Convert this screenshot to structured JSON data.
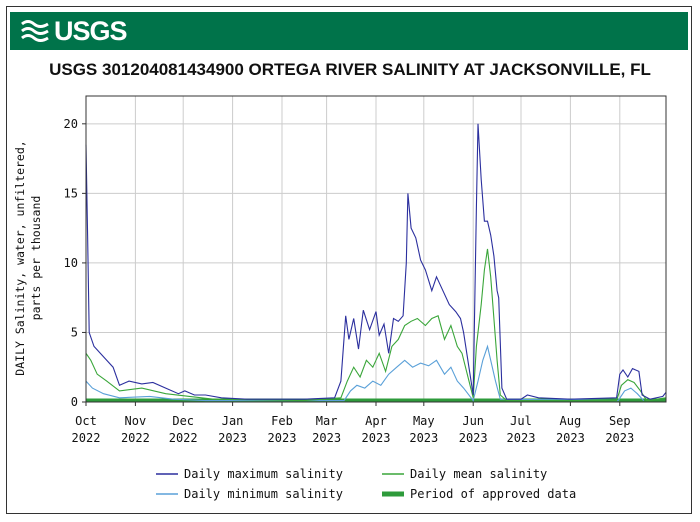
{
  "header": {
    "logo_text": "USGS",
    "brand_color": "#00734a"
  },
  "chart_data": {
    "type": "line",
    "title": "USGS 301204081434900 ORTEGA RIVER SALINITY AT JACKSONVILLE, FL",
    "ylabel_line1": "DAILY Salinity, water, unfiltered,",
    "ylabel_line2": "parts per thousand",
    "ylim": [
      0,
      22
    ],
    "yticks": [
      "0",
      "5",
      "10",
      "15",
      "20"
    ],
    "x_start": "2022-10-01",
    "x_end": "2023-09-30",
    "xticks": [
      {
        "date": "2022-10-01",
        "label1": "Oct",
        "label2": "2022"
      },
      {
        "date": "2022-11-01",
        "label1": "Nov",
        "label2": "2022"
      },
      {
        "date": "2022-12-01",
        "label1": "Dec",
        "label2": "2022"
      },
      {
        "date": "2023-01-01",
        "label1": "Jan",
        "label2": "2023"
      },
      {
        "date": "2023-02-01",
        "label1": "Feb",
        "label2": "2023"
      },
      {
        "date": "2023-03-01",
        "label1": "Mar",
        "label2": "2023"
      },
      {
        "date": "2023-04-01",
        "label1": "Apr",
        "label2": "2023"
      },
      {
        "date": "2023-05-01",
        "label1": "May",
        "label2": "2023"
      },
      {
        "date": "2023-06-01",
        "label1": "Jun",
        "label2": "2023"
      },
      {
        "date": "2023-07-01",
        "label1": "Jul",
        "label2": "2023"
      },
      {
        "date": "2023-08-01",
        "label1": "Aug",
        "label2": "2023"
      },
      {
        "date": "2023-09-01",
        "label1": "Sep",
        "label2": "2023"
      }
    ],
    "grid": true,
    "series": [
      {
        "name": "Daily maximum salinity",
        "color": "#2b2f9e",
        "points": [
          [
            "2022-10-01",
            18.5
          ],
          [
            "2022-10-02",
            12
          ],
          [
            "2022-10-03",
            5
          ],
          [
            "2022-10-06",
            4
          ],
          [
            "2022-10-10",
            3.5
          ],
          [
            "2022-10-14",
            3
          ],
          [
            "2022-10-18",
            2.5
          ],
          [
            "2022-10-22",
            1.2
          ],
          [
            "2022-10-28",
            1.5
          ],
          [
            "2022-11-05",
            1.3
          ],
          [
            "2022-11-12",
            1.4
          ],
          [
            "2022-11-20",
            1.0
          ],
          [
            "2022-11-28",
            0.6
          ],
          [
            "2022-12-02",
            0.8
          ],
          [
            "2022-12-08",
            0.5
          ],
          [
            "2022-12-15",
            0.5
          ],
          [
            "2022-12-25",
            0.3
          ],
          [
            "2023-01-10",
            0.2
          ],
          [
            "2023-02-15",
            0.2
          ],
          [
            "2023-03-06",
            0.3
          ],
          [
            "2023-03-10",
            1.5
          ],
          [
            "2023-03-13",
            6.2
          ],
          [
            "2023-03-15",
            4.5
          ],
          [
            "2023-03-18",
            6.0
          ],
          [
            "2023-03-21",
            3.8
          ],
          [
            "2023-03-24",
            6.6
          ],
          [
            "2023-03-28",
            5.2
          ],
          [
            "2023-04-01",
            6.5
          ],
          [
            "2023-04-03",
            4.8
          ],
          [
            "2023-04-06",
            5.6
          ],
          [
            "2023-04-09",
            3.5
          ],
          [
            "2023-04-12",
            6.0
          ],
          [
            "2023-04-15",
            5.8
          ],
          [
            "2023-04-18",
            6.2
          ],
          [
            "2023-04-20",
            10.0
          ],
          [
            "2023-04-21",
            15.0
          ],
          [
            "2023-04-23",
            12.5
          ],
          [
            "2023-04-26",
            11.8
          ],
          [
            "2023-04-29",
            10.2
          ],
          [
            "2023-05-02",
            9.5
          ],
          [
            "2023-05-06",
            8.0
          ],
          [
            "2023-05-09",
            9.0
          ],
          [
            "2023-05-13",
            8.0
          ],
          [
            "2023-05-17",
            7.0
          ],
          [
            "2023-05-21",
            6.5
          ],
          [
            "2023-05-24",
            6.0
          ],
          [
            "2023-05-26",
            5.0
          ],
          [
            "2023-06-01",
            0.5
          ],
          [
            "2023-06-03",
            14.0
          ],
          [
            "2023-06-04",
            20.0
          ],
          [
            "2023-06-06",
            16.0
          ],
          [
            "2023-06-08",
            13.0
          ],
          [
            "2023-06-10",
            13.0
          ],
          [
            "2023-06-12",
            12.0
          ],
          [
            "2023-06-14",
            10.5
          ],
          [
            "2023-06-16",
            8.0
          ],
          [
            "2023-06-17",
            7.5
          ],
          [
            "2023-06-19",
            1.0
          ],
          [
            "2023-06-22",
            0.2
          ],
          [
            "2023-07-01",
            0.2
          ],
          [
            "2023-07-05",
            0.5
          ],
          [
            "2023-07-12",
            0.3
          ],
          [
            "2023-08-01",
            0.2
          ],
          [
            "2023-08-30",
            0.3
          ],
          [
            "2023-09-01",
            2.0
          ],
          [
            "2023-09-03",
            2.3
          ],
          [
            "2023-09-06",
            1.8
          ],
          [
            "2023-09-09",
            2.4
          ],
          [
            "2023-09-13",
            2.2
          ],
          [
            "2023-09-15",
            0.5
          ],
          [
            "2023-09-20",
            0.2
          ],
          [
            "2023-09-28",
            0.4
          ],
          [
            "2023-09-30",
            0.7
          ]
        ]
      },
      {
        "name": "Daily mean salinity",
        "color": "#3aa63a",
        "points": [
          [
            "2022-10-01",
            3.5
          ],
          [
            "2022-10-04",
            3.0
          ],
          [
            "2022-10-08",
            2.0
          ],
          [
            "2022-10-14",
            1.5
          ],
          [
            "2022-10-22",
            0.8
          ],
          [
            "2022-11-05",
            1.0
          ],
          [
            "2022-11-20",
            0.6
          ],
          [
            "2022-12-05",
            0.4
          ],
          [
            "2022-12-20",
            0.2
          ],
          [
            "2023-02-15",
            0.1
          ],
          [
            "2023-03-10",
            0.3
          ],
          [
            "2023-03-14",
            1.5
          ],
          [
            "2023-03-18",
            2.5
          ],
          [
            "2023-03-22",
            1.8
          ],
          [
            "2023-03-26",
            3.0
          ],
          [
            "2023-03-30",
            2.5
          ],
          [
            "2023-04-03",
            3.5
          ],
          [
            "2023-04-07",
            2.2
          ],
          [
            "2023-04-11",
            4.0
          ],
          [
            "2023-04-15",
            4.5
          ],
          [
            "2023-04-19",
            5.5
          ],
          [
            "2023-04-23",
            5.8
          ],
          [
            "2023-04-27",
            6.0
          ],
          [
            "2023-05-02",
            5.5
          ],
          [
            "2023-05-06",
            6.0
          ],
          [
            "2023-05-10",
            6.2
          ],
          [
            "2023-05-14",
            4.5
          ],
          [
            "2023-05-18",
            5.5
          ],
          [
            "2023-05-22",
            4.0
          ],
          [
            "2023-05-25",
            3.5
          ],
          [
            "2023-06-01",
            0.3
          ],
          [
            "2023-06-03",
            4.0
          ],
          [
            "2023-06-06",
            7.0
          ],
          [
            "2023-06-08",
            9.5
          ],
          [
            "2023-06-10",
            11.0
          ],
          [
            "2023-06-12",
            9.0
          ],
          [
            "2023-06-14",
            6.0
          ],
          [
            "2023-06-16",
            3.0
          ],
          [
            "2023-06-18",
            0.5
          ],
          [
            "2023-06-22",
            0.1
          ],
          [
            "2023-08-30",
            0.1
          ],
          [
            "2023-09-02",
            1.2
          ],
          [
            "2023-09-06",
            1.6
          ],
          [
            "2023-09-10",
            1.4
          ],
          [
            "2023-09-14",
            0.8
          ],
          [
            "2023-09-18",
            0.1
          ],
          [
            "2023-09-30",
            0.3
          ]
        ]
      },
      {
        "name": "Daily minimum salinity",
        "color": "#5aa0d8",
        "points": [
          [
            "2022-10-01",
            1.5
          ],
          [
            "2022-10-05",
            1.0
          ],
          [
            "2022-10-12",
            0.6
          ],
          [
            "2022-10-22",
            0.3
          ],
          [
            "2022-11-10",
            0.4
          ],
          [
            "2022-11-25",
            0.2
          ],
          [
            "2022-12-15",
            0.1
          ],
          [
            "2023-03-12",
            0.1
          ],
          [
            "2023-03-16",
            0.8
          ],
          [
            "2023-03-20",
            1.2
          ],
          [
            "2023-03-25",
            1.0
          ],
          [
            "2023-03-30",
            1.5
          ],
          [
            "2023-04-04",
            1.2
          ],
          [
            "2023-04-09",
            2.0
          ],
          [
            "2023-04-14",
            2.5
          ],
          [
            "2023-04-19",
            3.0
          ],
          [
            "2023-04-24",
            2.5
          ],
          [
            "2023-04-29",
            2.8
          ],
          [
            "2023-05-04",
            2.6
          ],
          [
            "2023-05-09",
            3.0
          ],
          [
            "2023-05-14",
            2.0
          ],
          [
            "2023-05-18",
            2.5
          ],
          [
            "2023-05-22",
            1.5
          ],
          [
            "2023-05-26",
            1.0
          ],
          [
            "2023-06-01",
            0.1
          ],
          [
            "2023-06-04",
            1.5
          ],
          [
            "2023-06-07",
            3.0
          ],
          [
            "2023-06-10",
            4.0
          ],
          [
            "2023-06-12",
            3.0
          ],
          [
            "2023-06-15",
            1.5
          ],
          [
            "2023-06-18",
            0.2
          ],
          [
            "2023-08-31",
            0.1
          ],
          [
            "2023-09-04",
            0.8
          ],
          [
            "2023-09-08",
            1.0
          ],
          [
            "2023-09-12",
            0.6
          ],
          [
            "2023-09-16",
            0.1
          ]
        ]
      }
    ],
    "approved": {
      "name": "Period of approved data",
      "color": "#2e9b3b",
      "start": "2022-10-01",
      "end": "2023-09-30"
    },
    "legend_position": "bottom"
  }
}
